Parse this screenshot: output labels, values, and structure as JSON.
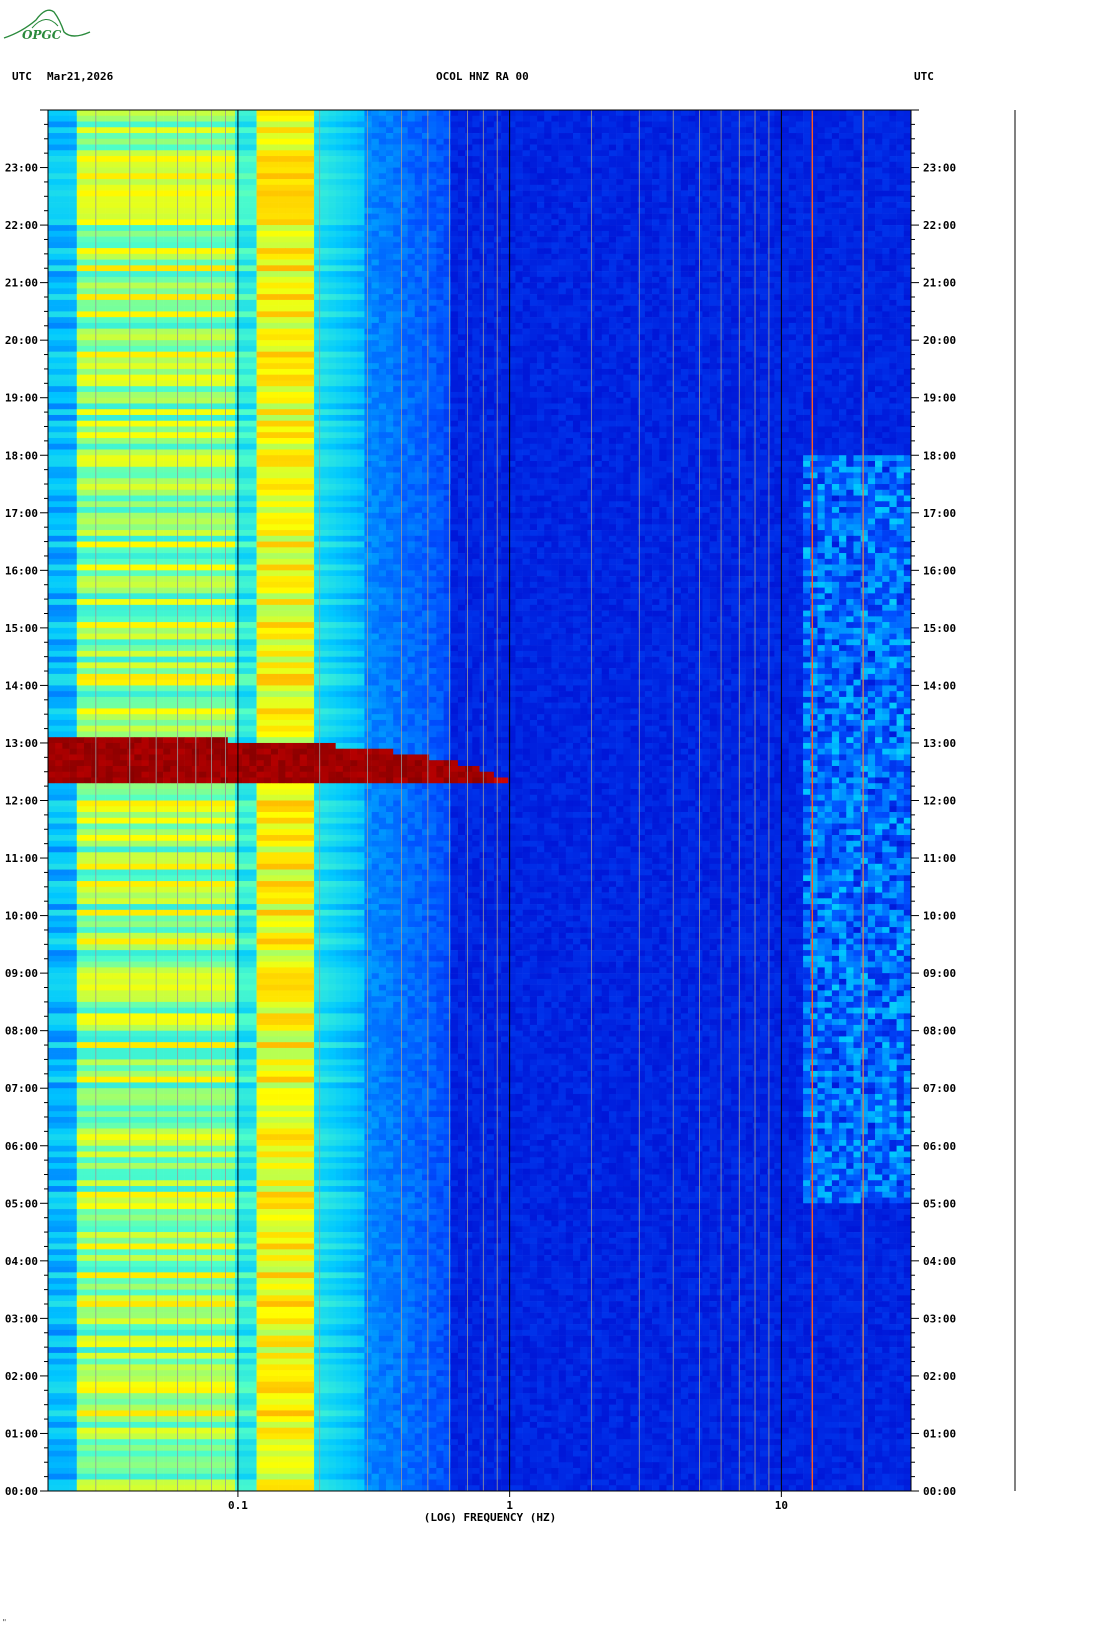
{
  "header": {
    "left_tz": "UTC",
    "date": "Mar21,2026",
    "station": "OCOL HNZ RA 00",
    "right_tz": "UTC"
  },
  "logo": {
    "text": "OPGC"
  },
  "corner_mark": "\"",
  "chart_data": {
    "type": "heatmap",
    "title": "OCOL HNZ RA 00",
    "xlabel": "(LOG) FREQUENCY (HZ)",
    "ylabel": "UTC",
    "x_scale": "log",
    "x_range_hz": [
      0.02,
      30
    ],
    "x_tick_labels": [
      {
        "value": 0.1,
        "label": "0.1"
      },
      {
        "value": 1,
        "label": "1"
      },
      {
        "value": 10,
        "label": "10"
      }
    ],
    "y_range_hours": [
      0,
      24
    ],
    "y_tick_labels": [
      "00:00",
      "01:00",
      "02:00",
      "03:00",
      "04:00",
      "05:00",
      "06:00",
      "07:00",
      "08:00",
      "09:00",
      "10:00",
      "11:00",
      "12:00",
      "13:00",
      "14:00",
      "15:00",
      "16:00",
      "17:00",
      "18:00",
      "19:00",
      "20:00",
      "21:00",
      "22:00",
      "23:00"
    ],
    "colormap": [
      "#0000c8",
      "#0050ff",
      "#00c8ff",
      "#50ffc8",
      "#ffff00",
      "#ff8000",
      "#c80000",
      "#8a0000"
    ],
    "background_level": "low energy (blue) above ~0.5 Hz, high energy (cyan/yellow) below ~0.2 Hz",
    "events": [
      {
        "description": "Strong low-frequency arrival",
        "time_utc": "12:25-13:05",
        "freq_range_hz": [
          0.02,
          1.0
        ],
        "level": "maximum"
      },
      {
        "description": "Persistent high-frequency activity",
        "time_utc": "05:00-18:00",
        "freq_range_hz": [
          12,
          30
        ],
        "level": "elevated"
      }
    ],
    "spectral_lines_hz": [
      13,
      20
    ]
  }
}
